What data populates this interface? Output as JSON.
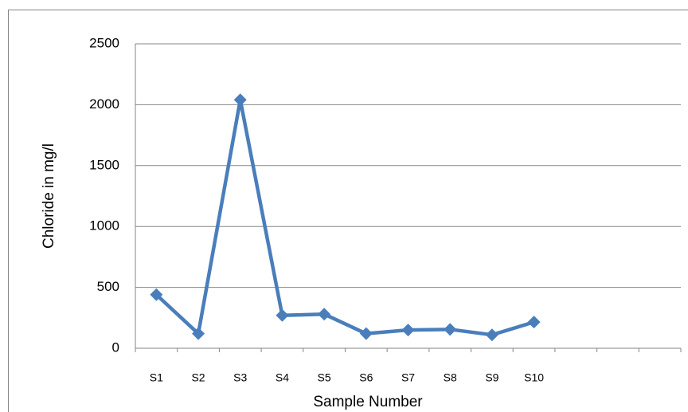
{
  "chart_data": {
    "type": "line",
    "x_label": "Sample Number",
    "y_label": "Chloride in mg/l",
    "categories": [
      "S1",
      "S2",
      "S3",
      "S4",
      "S5",
      "S6",
      "S7",
      "S8",
      "S9",
      "S10",
      null,
      null,
      null
    ],
    "values": [
      440,
      120,
      2040,
      270,
      280,
      120,
      150,
      155,
      110,
      215,
      null,
      null,
      null
    ],
    "color": "#4a7ebb",
    "ylim": [
      0,
      2500
    ],
    "yticks": [
      0,
      500,
      1000,
      1500,
      2000,
      2500
    ],
    "grid": true
  }
}
